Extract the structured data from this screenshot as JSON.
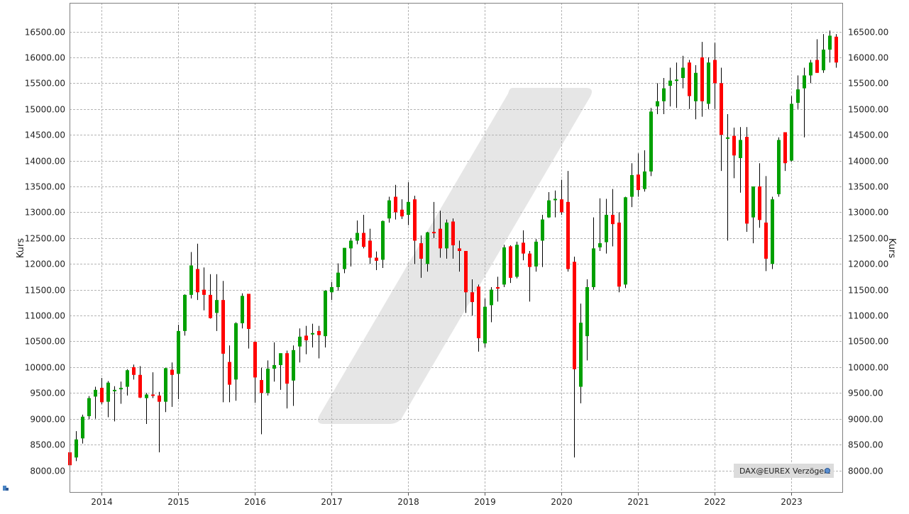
{
  "chart_data": {
    "type": "candlestick",
    "interval": "monthly",
    "ylabel": "Kurs",
    "ylim": [
      7700,
      16950
    ],
    "y_ticks": [
      8000,
      8500,
      9000,
      9500,
      10000,
      10500,
      11000,
      11500,
      12000,
      12500,
      13000,
      13500,
      14000,
      14500,
      15000,
      15500,
      16000,
      16500
    ],
    "x_ticks": [
      "2014",
      "2015",
      "2016",
      "2017",
      "2018",
      "2019",
      "2020",
      "2021",
      "2022",
      "2023"
    ],
    "x_start": "2013-08",
    "grid": true,
    "grid_style": "dashed",
    "up_color": "#00a000",
    "down_color": "#ff0000",
    "source_label": "DAX@EUREX Verzögert",
    "candles": [
      {
        "t": "2013-08",
        "o": 8350,
        "h": 8420,
        "l": 8050,
        "c": 8100
      },
      {
        "t": "2013-09",
        "o": 8250,
        "h": 8760,
        "l": 8180,
        "c": 8600
      },
      {
        "t": "2013-10",
        "o": 8620,
        "h": 9080,
        "l": 8520,
        "c": 9040
      },
      {
        "t": "2013-11",
        "o": 9050,
        "h": 9440,
        "l": 8990,
        "c": 9400
      },
      {
        "t": "2013-12",
        "o": 9430,
        "h": 9620,
        "l": 9000,
        "c": 9560
      },
      {
        "t": "2014-01",
        "o": 9600,
        "h": 9790,
        "l": 9280,
        "c": 9320
      },
      {
        "t": "2014-02",
        "o": 9330,
        "h": 9730,
        "l": 9030,
        "c": 9700
      },
      {
        "t": "2014-03",
        "o": 9560,
        "h": 9630,
        "l": 8950,
        "c": 9560
      },
      {
        "t": "2014-04",
        "o": 9570,
        "h": 9720,
        "l": 9290,
        "c": 9600
      },
      {
        "t": "2014-05",
        "o": 9620,
        "h": 9960,
        "l": 9450,
        "c": 9940
      },
      {
        "t": "2014-06",
        "o": 10000,
        "h": 10050,
        "l": 9760,
        "c": 9850
      },
      {
        "t": "2014-07",
        "o": 9850,
        "h": 10020,
        "l": 9400,
        "c": 9410
      },
      {
        "t": "2014-08",
        "o": 9400,
        "h": 9500,
        "l": 8900,
        "c": 9470
      },
      {
        "t": "2014-09",
        "o": 9470,
        "h": 9900,
        "l": 9400,
        "c": 9450
      },
      {
        "t": "2014-10",
        "o": 9450,
        "h": 9520,
        "l": 8350,
        "c": 9330
      },
      {
        "t": "2014-11",
        "o": 9330,
        "h": 9990,
        "l": 9130,
        "c": 9980
      },
      {
        "t": "2014-12",
        "o": 9950,
        "h": 10090,
        "l": 9230,
        "c": 9850
      },
      {
        "t": "2015-01",
        "o": 9870,
        "h": 10820,
        "l": 9380,
        "c": 10700
      },
      {
        "t": "2015-02",
        "o": 10700,
        "h": 11410,
        "l": 10610,
        "c": 11400
      },
      {
        "t": "2015-03",
        "o": 11400,
        "h": 12230,
        "l": 11330,
        "c": 11970
      },
      {
        "t": "2015-04",
        "o": 11900,
        "h": 12390,
        "l": 11300,
        "c": 11450
      },
      {
        "t": "2015-05",
        "o": 11500,
        "h": 11930,
        "l": 11100,
        "c": 11400
      },
      {
        "t": "2015-06",
        "o": 11400,
        "h": 11800,
        "l": 10940,
        "c": 10950
      },
      {
        "t": "2015-07",
        "o": 11050,
        "h": 11800,
        "l": 10700,
        "c": 11300
      },
      {
        "t": "2015-08",
        "o": 11300,
        "h": 11670,
        "l": 9320,
        "c": 10260
      },
      {
        "t": "2015-09",
        "o": 10100,
        "h": 10420,
        "l": 9320,
        "c": 9660
      },
      {
        "t": "2015-10",
        "o": 9760,
        "h": 10870,
        "l": 9350,
        "c": 10850
      },
      {
        "t": "2015-11",
        "o": 10850,
        "h": 11430,
        "l": 10750,
        "c": 11380
      },
      {
        "t": "2015-12",
        "o": 11420,
        "h": 11420,
        "l": 10360,
        "c": 10740
      },
      {
        "t": "2016-01",
        "o": 10490,
        "h": 10490,
        "l": 9310,
        "c": 9800
      },
      {
        "t": "2016-02",
        "o": 9750,
        "h": 9990,
        "l": 8700,
        "c": 9500
      },
      {
        "t": "2016-03",
        "o": 9500,
        "h": 10130,
        "l": 9450,
        "c": 9970
      },
      {
        "t": "2016-04",
        "o": 9970,
        "h": 10480,
        "l": 9720,
        "c": 10040
      },
      {
        "t": "2016-05",
        "o": 10040,
        "h": 10270,
        "l": 9560,
        "c": 10270
      },
      {
        "t": "2016-06",
        "o": 10270,
        "h": 10320,
        "l": 9200,
        "c": 9680
      },
      {
        "t": "2016-07",
        "o": 9740,
        "h": 10420,
        "l": 9250,
        "c": 10330
      },
      {
        "t": "2016-08",
        "o": 10400,
        "h": 10750,
        "l": 10090,
        "c": 10590
      },
      {
        "t": "2016-09",
        "o": 10610,
        "h": 10800,
        "l": 10250,
        "c": 10520
      },
      {
        "t": "2016-10",
        "o": 10650,
        "h": 10840,
        "l": 10380,
        "c": 10660
      },
      {
        "t": "2016-11",
        "o": 10700,
        "h": 10800,
        "l": 10170,
        "c": 10620
      },
      {
        "t": "2016-12",
        "o": 10600,
        "h": 11490,
        "l": 10380,
        "c": 11480
      },
      {
        "t": "2017-01",
        "o": 11450,
        "h": 11650,
        "l": 11300,
        "c": 11550
      },
      {
        "t": "2017-02",
        "o": 11550,
        "h": 12010,
        "l": 11480,
        "c": 11830
      },
      {
        "t": "2017-03",
        "o": 11900,
        "h": 12310,
        "l": 11820,
        "c": 12310
      },
      {
        "t": "2017-04",
        "o": 12300,
        "h": 12500,
        "l": 11950,
        "c": 12450
      },
      {
        "t": "2017-05",
        "o": 12450,
        "h": 12840,
        "l": 12380,
        "c": 12600
      },
      {
        "t": "2017-06",
        "o": 12600,
        "h": 12950,
        "l": 12300,
        "c": 12330
      },
      {
        "t": "2017-07",
        "o": 12450,
        "h": 12680,
        "l": 12000,
        "c": 12120
      },
      {
        "t": "2017-08",
        "o": 12120,
        "h": 12240,
        "l": 11880,
        "c": 12060
      },
      {
        "t": "2017-09",
        "o": 12080,
        "h": 12840,
        "l": 11920,
        "c": 12830
      },
      {
        "t": "2017-10",
        "o": 12880,
        "h": 13300,
        "l": 12800,
        "c": 13230
      },
      {
        "t": "2017-11",
        "o": 13300,
        "h": 13530,
        "l": 12860,
        "c": 13000
      },
      {
        "t": "2017-12",
        "o": 13050,
        "h": 13250,
        "l": 12870,
        "c": 12920
      },
      {
        "t": "2018-01",
        "o": 12950,
        "h": 13580,
        "l": 12750,
        "c": 13200
      },
      {
        "t": "2018-02",
        "o": 13250,
        "h": 13320,
        "l": 12000,
        "c": 12450
      },
      {
        "t": "2018-03",
        "o": 12400,
        "h": 12550,
        "l": 11730,
        "c": 12100
      },
      {
        "t": "2018-04",
        "o": 12000,
        "h": 12620,
        "l": 11850,
        "c": 12610
      },
      {
        "t": "2018-05",
        "o": 12620,
        "h": 13200,
        "l": 12500,
        "c": 12600
      },
      {
        "t": "2018-06",
        "o": 12680,
        "h": 13030,
        "l": 12120,
        "c": 12300
      },
      {
        "t": "2018-07",
        "o": 12300,
        "h": 12860,
        "l": 12100,
        "c": 12800
      },
      {
        "t": "2018-08",
        "o": 12820,
        "h": 12880,
        "l": 12100,
        "c": 12360
      },
      {
        "t": "2018-09",
        "o": 12300,
        "h": 12450,
        "l": 11850,
        "c": 12250
      },
      {
        "t": "2018-10",
        "o": 12250,
        "h": 12250,
        "l": 11050,
        "c": 11450
      },
      {
        "t": "2018-11",
        "o": 11450,
        "h": 11700,
        "l": 11000,
        "c": 11260
      },
      {
        "t": "2018-12",
        "o": 11560,
        "h": 11600,
        "l": 10300,
        "c": 10560
      },
      {
        "t": "2019-01",
        "o": 10460,
        "h": 11330,
        "l": 10380,
        "c": 11170
      },
      {
        "t": "2019-02",
        "o": 11200,
        "h": 11550,
        "l": 10870,
        "c": 11500
      },
      {
        "t": "2019-03",
        "o": 11550,
        "h": 11750,
        "l": 11270,
        "c": 11520
      },
      {
        "t": "2019-04",
        "o": 11600,
        "h": 12370,
        "l": 11550,
        "c": 12320
      },
      {
        "t": "2019-05",
        "o": 12340,
        "h": 12360,
        "l": 11630,
        "c": 11730
      },
      {
        "t": "2019-06",
        "o": 11750,
        "h": 12430,
        "l": 11720,
        "c": 12370
      },
      {
        "t": "2019-07",
        "o": 12410,
        "h": 12650,
        "l": 12070,
        "c": 12200
      },
      {
        "t": "2019-08",
        "o": 12200,
        "h": 12250,
        "l": 11270,
        "c": 11940
      },
      {
        "t": "2019-09",
        "o": 11950,
        "h": 12480,
        "l": 11850,
        "c": 12430
      },
      {
        "t": "2019-10",
        "o": 12450,
        "h": 12950,
        "l": 11940,
        "c": 12860
      },
      {
        "t": "2019-11",
        "o": 12900,
        "h": 13390,
        "l": 12890,
        "c": 13230
      },
      {
        "t": "2019-12",
        "o": 13250,
        "h": 13420,
        "l": 12900,
        "c": 13260
      },
      {
        "t": "2020-01",
        "o": 13250,
        "h": 13630,
        "l": 12950,
        "c": 13000
      },
      {
        "t": "2020-02",
        "o": 13200,
        "h": 13800,
        "l": 11850,
        "c": 11900
      },
      {
        "t": "2020-03",
        "o": 12040,
        "h": 12140,
        "l": 8250,
        "c": 9960
      },
      {
        "t": "2020-04",
        "o": 9620,
        "h": 11230,
        "l": 9300,
        "c": 10860
      },
      {
        "t": "2020-05",
        "o": 10600,
        "h": 11700,
        "l": 10130,
        "c": 11550
      },
      {
        "t": "2020-06",
        "o": 11550,
        "h": 12900,
        "l": 11500,
        "c": 12300
      },
      {
        "t": "2020-07",
        "o": 12320,
        "h": 13270,
        "l": 12250,
        "c": 12400
      },
      {
        "t": "2020-08",
        "o": 12420,
        "h": 13260,
        "l": 12200,
        "c": 12950
      },
      {
        "t": "2020-09",
        "o": 12950,
        "h": 13450,
        "l": 12340,
        "c": 12770
      },
      {
        "t": "2020-10",
        "o": 12800,
        "h": 13000,
        "l": 11450,
        "c": 11560
      },
      {
        "t": "2020-11",
        "o": 11600,
        "h": 13300,
        "l": 11530,
        "c": 13290
      },
      {
        "t": "2020-12",
        "o": 13300,
        "h": 13950,
        "l": 13100,
        "c": 13720
      },
      {
        "t": "2021-01",
        "o": 13730,
        "h": 14140,
        "l": 13300,
        "c": 13430
      },
      {
        "t": "2021-02",
        "o": 13450,
        "h": 14200,
        "l": 13400,
        "c": 13790
      },
      {
        "t": "2021-03",
        "o": 13790,
        "h": 15020,
        "l": 13700,
        "c": 14950
      },
      {
        "t": "2021-04",
        "o": 15050,
        "h": 15500,
        "l": 14900,
        "c": 15150
      },
      {
        "t": "2021-05",
        "o": 15150,
        "h": 15600,
        "l": 14900,
        "c": 15400
      },
      {
        "t": "2021-06",
        "o": 15450,
        "h": 15800,
        "l": 15050,
        "c": 15550
      },
      {
        "t": "2021-07",
        "o": 15550,
        "h": 15900,
        "l": 15020,
        "c": 15570
      },
      {
        "t": "2021-08",
        "o": 15600,
        "h": 16030,
        "l": 15400,
        "c": 15800
      },
      {
        "t": "2021-09",
        "o": 15900,
        "h": 15950,
        "l": 15000,
        "c": 15250
      },
      {
        "t": "2021-10",
        "o": 15150,
        "h": 15850,
        "l": 14800,
        "c": 15700
      },
      {
        "t": "2021-11",
        "o": 16000,
        "h": 16300,
        "l": 14850,
        "c": 15150
      },
      {
        "t": "2021-12",
        "o": 15100,
        "h": 16000,
        "l": 15000,
        "c": 15900
      },
      {
        "t": "2022-01",
        "o": 15950,
        "h": 16280,
        "l": 15000,
        "c": 15500
      },
      {
        "t": "2022-02",
        "o": 15500,
        "h": 15800,
        "l": 13800,
        "c": 14500
      },
      {
        "t": "2022-03",
        "o": 14450,
        "h": 14900,
        "l": 12450,
        "c": 14450
      },
      {
        "t": "2022-04",
        "o": 14480,
        "h": 14640,
        "l": 13660,
        "c": 14100
      },
      {
        "t": "2022-05",
        "o": 14050,
        "h": 14650,
        "l": 13380,
        "c": 14400
      },
      {
        "t": "2022-06",
        "o": 14460,
        "h": 14650,
        "l": 12620,
        "c": 12780
      },
      {
        "t": "2022-07",
        "o": 12900,
        "h": 13500,
        "l": 12400,
        "c": 13500
      },
      {
        "t": "2022-08",
        "o": 13500,
        "h": 13950,
        "l": 12700,
        "c": 12850
      },
      {
        "t": "2022-09",
        "o": 12800,
        "h": 13700,
        "l": 11860,
        "c": 12100
      },
      {
        "t": "2022-10",
        "o": 12000,
        "h": 13300,
        "l": 11900,
        "c": 13250
      },
      {
        "t": "2022-11",
        "o": 13350,
        "h": 14450,
        "l": 13300,
        "c": 14400
      },
      {
        "t": "2022-12",
        "o": 14550,
        "h": 14550,
        "l": 13800,
        "c": 13950
      },
      {
        "t": "2023-01",
        "o": 14000,
        "h": 15250,
        "l": 13980,
        "c": 15100
      },
      {
        "t": "2023-02",
        "o": 15120,
        "h": 15650,
        "l": 15000,
        "c": 15380
      },
      {
        "t": "2023-03",
        "o": 15400,
        "h": 15800,
        "l": 14450,
        "c": 15650
      },
      {
        "t": "2023-04",
        "o": 15650,
        "h": 15950,
        "l": 15500,
        "c": 15900
      },
      {
        "t": "2023-05",
        "o": 15950,
        "h": 16350,
        "l": 15700,
        "c": 15700
      },
      {
        "t": "2023-06",
        "o": 15750,
        "h": 16450,
        "l": 15700,
        "c": 16150
      },
      {
        "t": "2023-07",
        "o": 16150,
        "h": 16520,
        "l": 15900,
        "c": 16420
      },
      {
        "t": "2023-08",
        "o": 16400,
        "h": 16450,
        "l": 15800,
        "c": 15900
      }
    ]
  }
}
